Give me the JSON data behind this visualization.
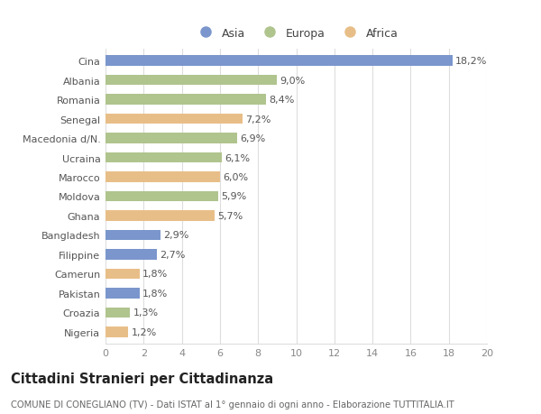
{
  "categories": [
    "Cina",
    "Albania",
    "Romania",
    "Senegal",
    "Macedonia d/N.",
    "Ucraina",
    "Marocco",
    "Moldova",
    "Ghana",
    "Bangladesh",
    "Filippine",
    "Camerun",
    "Pakistan",
    "Croazia",
    "Nigeria"
  ],
  "values": [
    18.2,
    9.0,
    8.4,
    7.2,
    6.9,
    6.1,
    6.0,
    5.9,
    5.7,
    2.9,
    2.7,
    1.8,
    1.8,
    1.3,
    1.2
  ],
  "labels": [
    "18,2%",
    "9,0%",
    "8,4%",
    "7,2%",
    "6,9%",
    "6,1%",
    "6,0%",
    "5,9%",
    "5,7%",
    "2,9%",
    "2,7%",
    "1,8%",
    "1,8%",
    "1,3%",
    "1,2%"
  ],
  "colors": [
    "#7b96cc",
    "#b0c48e",
    "#b0c48e",
    "#e8be88",
    "#b0c48e",
    "#b0c48e",
    "#e8be88",
    "#b0c48e",
    "#e8be88",
    "#7b96cc",
    "#7b96cc",
    "#e8be88",
    "#7b96cc",
    "#b0c48e",
    "#e8be88"
  ],
  "legend_labels": [
    "Asia",
    "Europa",
    "Africa"
  ],
  "legend_colors": [
    "#7b96cc",
    "#b0c48e",
    "#e8be88"
  ],
  "title": "Cittadini Stranieri per Cittadinanza",
  "subtitle": "COMUNE DI CONEGLIANO (TV) - Dati ISTAT al 1° gennaio di ogni anno - Elaborazione TUTTITALIA.IT",
  "xlim": [
    0,
    20
  ],
  "xticks": [
    0,
    2,
    4,
    6,
    8,
    10,
    12,
    14,
    16,
    18,
    20
  ],
  "bg_color": "#ffffff",
  "grid_color": "#dddddd",
  "label_fontsize": 8.0,
  "ytick_fontsize": 8.0,
  "xtick_fontsize": 8.0,
  "title_fontsize": 10.5,
  "subtitle_fontsize": 7.2,
  "bar_height": 0.55
}
